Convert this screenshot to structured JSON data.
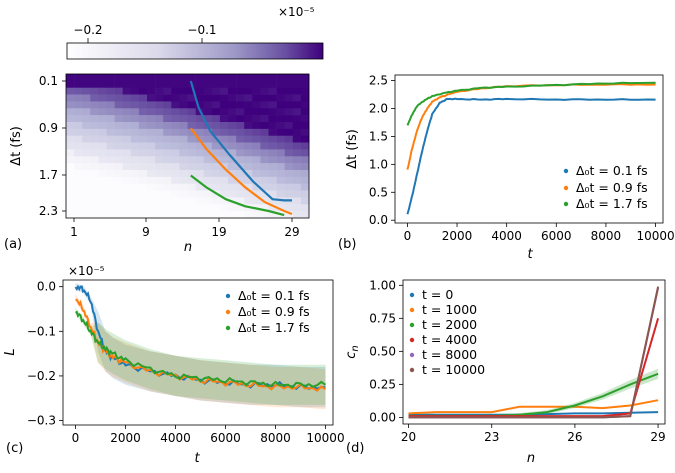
{
  "colors": {
    "blue": "#1f77b4",
    "orange": "#ff7f0e",
    "green": "#2ca02c",
    "red": "#d62728",
    "purple": "#9467bd",
    "brown": "#8c564b",
    "heat_high": "#3f007d",
    "heat_low": "#fcfbfd"
  },
  "chart_data": [
    {
      "panel": "(a)",
      "type": "heatmap",
      "xlabel": "n",
      "ylabel": "Δt (fs)",
      "xticks": [
        "1",
        "9",
        "19",
        "29"
      ],
      "yticks": [
        "0.1",
        "0.9",
        "1.7",
        "2.3"
      ],
      "colorbar": {
        "ticks": [
          "−0.2",
          "−0.1"
        ],
        "scale_label": "×10⁻⁵",
        "range": [
          -0.23,
          0.0
        ]
      },
      "overlay_series": [
        {
          "name": "blue",
          "points": [
            [
              16,
              0.1
            ],
            [
              17,
              0.55
            ],
            [
              18.5,
              0.95
            ],
            [
              21,
              1.35
            ],
            [
              24,
              1.8
            ],
            [
              26.5,
              2.1
            ],
            [
              28,
              2.12
            ],
            [
              29,
              2.12
            ]
          ]
        },
        {
          "name": "orange",
          "points": [
            [
              16,
              0.9
            ],
            [
              18,
              1.25
            ],
            [
              20.5,
              1.6
            ],
            [
              23,
              1.9
            ],
            [
              25.5,
              2.15
            ],
            [
              28,
              2.3
            ],
            [
              29,
              2.35
            ]
          ]
        },
        {
          "name": "green",
          "points": [
            [
              16,
              1.7
            ],
            [
              18,
              1.9
            ],
            [
              20.5,
              2.1
            ],
            [
              23,
              2.22
            ],
            [
              26,
              2.3
            ],
            [
              28,
              2.37
            ]
          ]
        }
      ]
    },
    {
      "panel": "(b)",
      "type": "line",
      "xlabel": "t",
      "ylabel": "Δt (fs)",
      "xlim": [
        -500,
        10300
      ],
      "ylim": [
        -0.05,
        2.6
      ],
      "xticks": [
        "0",
        "2000",
        "4000",
        "6000",
        "8000",
        "10000"
      ],
      "yticks": [
        "0.0",
        "0.5",
        "1.0",
        "1.5",
        "2.0",
        "2.5"
      ],
      "legend": [
        "Δ₀t = 0.1 fs",
        "Δ₀t = 0.9 fs",
        "Δ₀t = 1.7 fs"
      ],
      "series": [
        {
          "name": "Δ₀t = 0.1 fs",
          "x": [
            0,
            200,
            400,
            600,
            800,
            1000,
            1300,
            1600,
            2000,
            3000,
            4000,
            6000,
            8000,
            10000
          ],
          "y": [
            0.1,
            0.45,
            0.85,
            1.25,
            1.6,
            1.9,
            2.1,
            2.17,
            2.17,
            2.16,
            2.17,
            2.16,
            2.16,
            2.16
          ]
        },
        {
          "name": "Δ₀t = 0.9 fs",
          "x": [
            0,
            200,
            400,
            600,
            800,
            1000,
            1300,
            1700,
            2000,
            3000,
            4000,
            6000,
            8000,
            10000
          ],
          "y": [
            0.9,
            1.3,
            1.62,
            1.85,
            2.0,
            2.12,
            2.2,
            2.26,
            2.3,
            2.36,
            2.4,
            2.42,
            2.43,
            2.43
          ]
        },
        {
          "name": "Δ₀t = 1.7 fs",
          "x": [
            0,
            200,
            400,
            700,
            1000,
            1500,
            2000,
            3000,
            4000,
            6000,
            8000,
            10000
          ],
          "y": [
            1.7,
            1.9,
            2.05,
            2.15,
            2.22,
            2.28,
            2.32,
            2.37,
            2.39,
            2.42,
            2.45,
            2.46
          ]
        }
      ]
    },
    {
      "panel": "(c)",
      "type": "line",
      "xlabel": "t",
      "ylabel": "L",
      "scale_label": "×10⁻⁵",
      "xlim": [
        -500,
        10300
      ],
      "ylim": [
        -0.31,
        0.015
      ],
      "xticks": [
        "0",
        "2000",
        "4000",
        "6000",
        "8000",
        "10000"
      ],
      "yticks": [
        "0.0",
        "−0.1",
        "−0.2",
        "−0.3"
      ],
      "legend": [
        "Δ₀t = 0.1 fs",
        "Δ₀t = 0.9 fs",
        "Δ₀t = 1.7 fs"
      ],
      "series": [
        {
          "name": "Δ₀t = 0.1 fs",
          "x": [
            0,
            300,
            600,
            900,
            1200,
            1500,
            2000,
            3000,
            4000,
            5000,
            6000,
            7000,
            8000,
            9000,
            10000
          ],
          "y": [
            0.0,
            -0.005,
            -0.03,
            -0.1,
            -0.145,
            -0.16,
            -0.175,
            -0.19,
            -0.2,
            -0.21,
            -0.215,
            -0.22,
            -0.22,
            -0.225,
            -0.225
          ]
        },
        {
          "name": "Δ₀t = 0.9 fs",
          "x": [
            0,
            300,
            600,
            900,
            1200,
            1500,
            2000,
            3000,
            4000,
            5000,
            6000,
            7000,
            8000,
            9000,
            10000
          ],
          "y": [
            -0.025,
            -0.05,
            -0.09,
            -0.125,
            -0.145,
            -0.158,
            -0.17,
            -0.19,
            -0.2,
            -0.21,
            -0.215,
            -0.22,
            -0.225,
            -0.225,
            -0.23
          ]
        },
        {
          "name": "Δ₀t = 1.7 fs",
          "x": [
            0,
            300,
            600,
            900,
            1200,
            1500,
            2000,
            3000,
            4000,
            5000,
            6000,
            7000,
            8000,
            9000,
            10000
          ],
          "y": [
            -0.055,
            -0.075,
            -0.1,
            -0.125,
            -0.14,
            -0.15,
            -0.165,
            -0.185,
            -0.2,
            -0.205,
            -0.21,
            -0.215,
            -0.22,
            -0.22,
            -0.22
          ]
        }
      ]
    },
    {
      "panel": "(d)",
      "type": "line",
      "xlabel": "n",
      "ylabel": "c_n",
      "ylabel_display": "c",
      "ylabel_sub": "n",
      "xlim": [
        19.8,
        29.25
      ],
      "ylim": [
        -0.05,
        1.04
      ],
      "xticks": [
        "20",
        "23",
        "26",
        "29"
      ],
      "yticks": [
        "0.00",
        "0.25",
        "0.50",
        "0.75",
        "1.00"
      ],
      "legend": [
        "t = 0",
        "t = 1000",
        "t = 2000",
        "t = 4000",
        "t = 8000",
        "t = 10000"
      ],
      "series": [
        {
          "name": "t = 0",
          "x": [
            20,
            21,
            22,
            23,
            24,
            25,
            26,
            27,
            28,
            29
          ],
          "y": [
            0.02,
            0.02,
            0.02,
            0.02,
            0.02,
            0.025,
            0.03,
            0.03,
            0.035,
            0.04
          ]
        },
        {
          "name": "t = 1000",
          "x": [
            20,
            21,
            22,
            23,
            24,
            25,
            26,
            27,
            28,
            29
          ],
          "y": [
            0.03,
            0.04,
            0.04,
            0.04,
            0.08,
            0.08,
            0.08,
            0.07,
            0.09,
            0.13
          ]
        },
        {
          "name": "t = 2000",
          "x": [
            20,
            21,
            22,
            23,
            24,
            25,
            26,
            27,
            28,
            29
          ],
          "y": [
            0.01,
            0.01,
            0.01,
            0.01,
            0.02,
            0.04,
            0.09,
            0.16,
            0.25,
            0.33
          ]
        },
        {
          "name": "t = 4000",
          "x": [
            20,
            21,
            22,
            23,
            24,
            25,
            26,
            27,
            28,
            29
          ],
          "y": [
            0.01,
            0.01,
            0.01,
            0.01,
            0.01,
            0.01,
            0.01,
            0.01,
            0.03,
            0.75
          ]
        },
        {
          "name": "t = 8000",
          "x": [
            20,
            21,
            22,
            23,
            24,
            25,
            26,
            27,
            28,
            29
          ],
          "y": [
            0.0,
            0.0,
            0.0,
            0.0,
            0.0,
            0.0,
            0.0,
            0.0,
            0.01,
            0.98
          ]
        },
        {
          "name": "t = 10000",
          "x": [
            20,
            21,
            22,
            23,
            24,
            25,
            26,
            27,
            28,
            29
          ],
          "y": [
            0.0,
            0.0,
            0.0,
            0.0,
            0.0,
            0.0,
            0.0,
            0.0,
            0.01,
            0.99
          ]
        }
      ]
    }
  ]
}
